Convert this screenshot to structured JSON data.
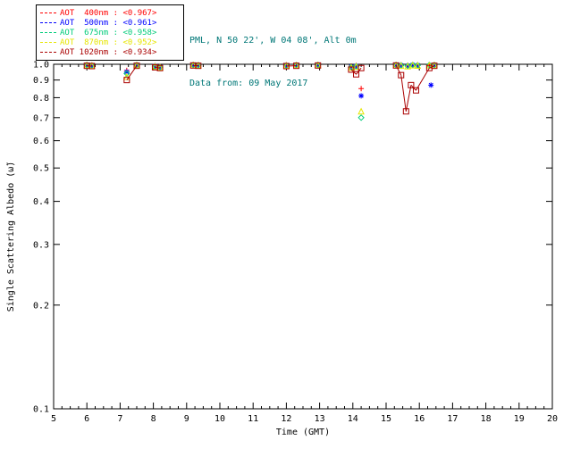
{
  "header": {
    "site_line": "PML, N 50 22', W 04 08', Alt 0m",
    "date_line": "Data from: 09 May 2017",
    "color": "#007777"
  },
  "legend": {
    "items": [
      {
        "label": "AOT  400nm : <0.967>",
        "color": "#ff0000"
      },
      {
        "label": "AOT  500nm : <0.961>",
        "color": "#0000ff"
      },
      {
        "label": "AOT  675nm : <0.958>",
        "color": "#00cc7a"
      },
      {
        "label": "AOT  870nm : <0.952>",
        "color": "#e6e600"
      },
      {
        "label": "AOT 1020nm : <0.934>",
        "color": "#aa0000"
      }
    ]
  },
  "chart_data": {
    "type": "scatter",
    "title": "",
    "xlabel": "Time (GMT)",
    "ylabel": "Single Scattering Albedo (ω̃)",
    "xlim": [
      5,
      20
    ],
    "ylim": [
      0.1,
      1.0
    ],
    "yscale": "log",
    "grid": false,
    "axis_color": "#000000",
    "xticks": [
      5,
      6,
      7,
      8,
      9,
      10,
      11,
      12,
      13,
      14,
      15,
      16,
      17,
      18,
      19,
      20
    ],
    "yticks": [
      1.0,
      0.9,
      0.8,
      0.7,
      0.6,
      0.5,
      0.4,
      0.3,
      0.2,
      0.1
    ],
    "legend_position": "top-left",
    "series": [
      {
        "name": "AOT 400nm",
        "mean": "<0.967>",
        "color": "#ff0000",
        "marker": "plus",
        "line": false,
        "points": [
          [
            6.0,
            0.998
          ],
          [
            6.15,
            0.995
          ],
          [
            7.2,
            0.96
          ],
          [
            7.5,
            0.998
          ],
          [
            8.05,
            0.99
          ],
          [
            8.2,
            0.985
          ],
          [
            9.2,
            0.998
          ],
          [
            9.35,
            0.996
          ],
          [
            12.0,
            0.996
          ],
          [
            12.3,
            0.997
          ],
          [
            12.95,
            0.998
          ],
          [
            13.95,
            0.988
          ],
          [
            14.1,
            0.992
          ],
          [
            14.25,
            0.85
          ],
          [
            15.3,
            0.998
          ],
          [
            15.45,
            0.996
          ],
          [
            15.65,
            0.993
          ],
          [
            15.8,
            0.997
          ],
          [
            15.95,
            0.996
          ],
          [
            16.3,
            0.997
          ],
          [
            16.45,
            0.998
          ]
        ]
      },
      {
        "name": "AOT 500nm",
        "mean": "<0.961>",
        "color": "#0000ff",
        "marker": "asterisk",
        "line": false,
        "points": [
          [
            6.0,
            0.996
          ],
          [
            6.15,
            0.993
          ],
          [
            7.2,
            0.95
          ],
          [
            7.5,
            0.996
          ],
          [
            8.05,
            0.988
          ],
          [
            8.2,
            0.982
          ],
          [
            9.2,
            0.997
          ],
          [
            9.35,
            0.995
          ],
          [
            12.0,
            0.994
          ],
          [
            12.3,
            0.996
          ],
          [
            12.95,
            0.997
          ],
          [
            13.95,
            0.984
          ],
          [
            14.1,
            0.988
          ],
          [
            14.25,
            0.81
          ],
          [
            15.3,
            0.997
          ],
          [
            15.45,
            0.994
          ],
          [
            15.65,
            0.991
          ],
          [
            15.8,
            0.996
          ],
          [
            15.95,
            0.994
          ],
          [
            16.35,
            0.87
          ],
          [
            16.45,
            0.996
          ]
        ]
      },
      {
        "name": "AOT 675nm",
        "mean": "<0.958>",
        "color": "#00cc7a",
        "marker": "diamond",
        "line": false,
        "points": [
          [
            6.0,
            0.995
          ],
          [
            6.15,
            0.992
          ],
          [
            7.2,
            0.94
          ],
          [
            7.5,
            0.995
          ],
          [
            8.05,
            0.986
          ],
          [
            8.2,
            0.98
          ],
          [
            9.2,
            0.996
          ],
          [
            9.35,
            0.994
          ],
          [
            12.0,
            0.992
          ],
          [
            12.3,
            0.995
          ],
          [
            12.95,
            0.996
          ],
          [
            13.95,
            0.981
          ],
          [
            14.1,
            0.986
          ],
          [
            14.25,
            0.7
          ],
          [
            15.3,
            0.996
          ],
          [
            15.45,
            0.992
          ],
          [
            15.65,
            0.989
          ],
          [
            15.8,
            0.995
          ],
          [
            15.95,
            0.993
          ],
          [
            16.3,
            0.995
          ],
          [
            16.45,
            0.995
          ]
        ]
      },
      {
        "name": "AOT 870nm",
        "mean": "<0.952>",
        "color": "#e6e600",
        "marker": "triangle",
        "line": false,
        "points": [
          [
            6.0,
            0.993
          ],
          [
            6.15,
            0.99
          ],
          [
            7.2,
            0.92
          ],
          [
            7.5,
            0.993
          ],
          [
            8.05,
            0.984
          ],
          [
            8.2,
            0.978
          ],
          [
            9.2,
            0.994
          ],
          [
            9.35,
            0.992
          ],
          [
            12.0,
            0.99
          ],
          [
            12.3,
            0.993
          ],
          [
            12.95,
            0.994
          ],
          [
            13.95,
            0.978
          ],
          [
            14.1,
            0.984
          ],
          [
            14.25,
            0.73
          ],
          [
            15.3,
            0.994
          ],
          [
            15.45,
            0.99
          ],
          [
            15.65,
            0.987
          ],
          [
            15.8,
            0.993
          ],
          [
            15.95,
            0.991
          ],
          [
            16.3,
            0.993
          ],
          [
            16.45,
            0.993
          ]
        ]
      },
      {
        "name": "AOT 1020nm",
        "mean": "<0.934>",
        "color": "#aa0000",
        "marker": "square",
        "line": true,
        "points": [
          [
            6.0,
            0.99
          ],
          [
            6.15,
            0.988
          ],
          [
            7.2,
            0.9
          ],
          [
            7.5,
            0.99
          ],
          [
            8.05,
            0.98
          ],
          [
            8.2,
            0.975
          ],
          [
            9.2,
            0.992
          ],
          [
            9.35,
            0.99
          ],
          [
            12.0,
            0.988
          ],
          [
            12.3,
            0.99
          ],
          [
            12.95,
            0.992
          ],
          [
            13.95,
            0.965
          ],
          [
            14.1,
            0.935
          ],
          [
            14.25,
            0.975
          ],
          [
            15.3,
            0.992
          ],
          [
            15.45,
            0.93
          ],
          [
            15.6,
            0.73
          ],
          [
            15.75,
            0.87
          ],
          [
            15.9,
            0.84
          ],
          [
            16.3,
            0.975
          ],
          [
            16.45,
            0.99
          ]
        ]
      }
    ]
  }
}
